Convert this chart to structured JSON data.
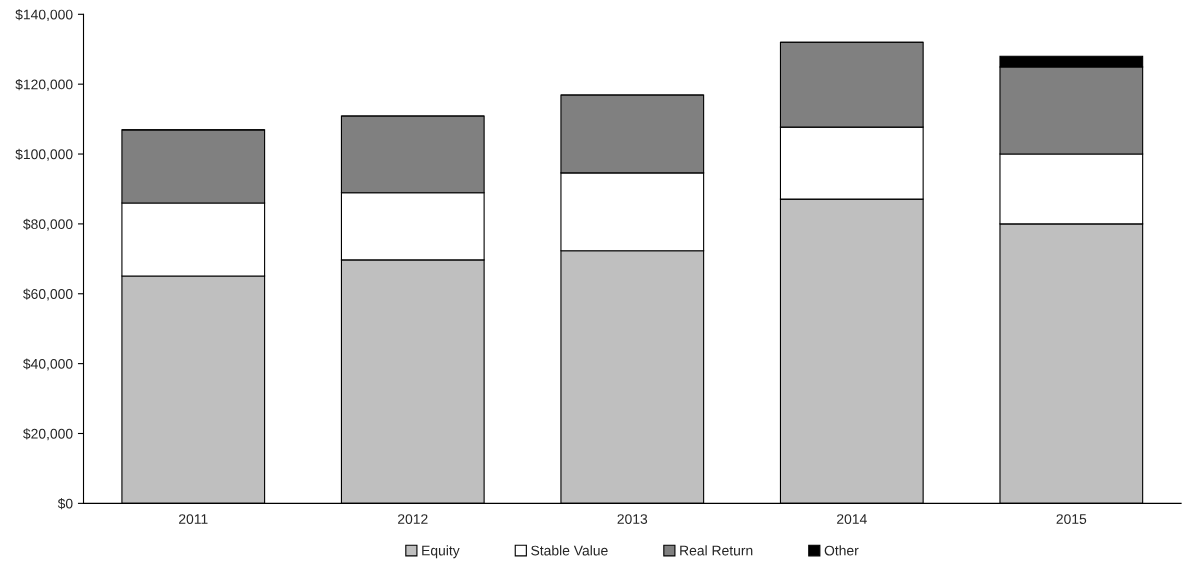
{
  "chart_data": {
    "type": "bar",
    "stacked": true,
    "categories": [
      "2011",
      "2012",
      "2013",
      "2014",
      "2015"
    ],
    "series": [
      {
        "name": "Equity",
        "color": "#bfbfbf",
        "values": [
          65100,
          69700,
          72300,
          87100,
          80000
        ]
      },
      {
        "name": "Stable Value",
        "color": "#ffffff",
        "values": [
          20900,
          19200,
          22300,
          20600,
          20000
        ]
      },
      {
        "name": "Real Return",
        "color": "#808080",
        "values": [
          20900,
          22000,
          22300,
          24300,
          24900
        ]
      },
      {
        "name": "Other",
        "color": "#000000",
        "values": [
          0,
          0,
          0,
          0,
          3100
        ]
      }
    ],
    "ylim": [
      0,
      140000
    ],
    "yticks": [
      {
        "value": 0,
        "label": "$0"
      },
      {
        "value": 20000,
        "label": "$20,000"
      },
      {
        "value": 40000,
        "label": "$40,000"
      },
      {
        "value": 60000,
        "label": "$60,000"
      },
      {
        "value": 80000,
        "label": "$80,000"
      },
      {
        "value": 100000,
        "label": "$100,000"
      },
      {
        "value": 120000,
        "label": "$120,000"
      },
      {
        "value": 140000,
        "label": "$140,000"
      }
    ],
    "grid": false,
    "legend": "bottom"
  }
}
